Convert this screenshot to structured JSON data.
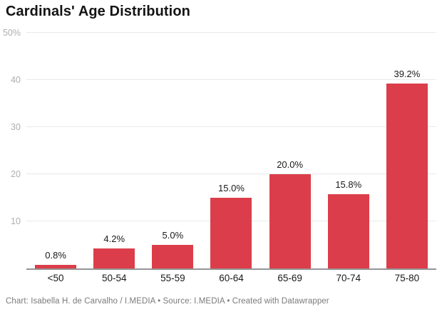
{
  "header": {
    "title": "Cardinals' Age Distribution"
  },
  "chart_data": {
    "type": "bar",
    "title": "Cardinals' Age Distribution",
    "categories": [
      "<50",
      "50-54",
      "55-59",
      "60-64",
      "65-69",
      "70-74",
      "75-80"
    ],
    "values": [
      0.8,
      4.2,
      5.0,
      15.0,
      20.0,
      15.8,
      39.2
    ],
    "value_labels": [
      "0.8%",
      "4.2%",
      "5.0%",
      "15.0%",
      "20.0%",
      "15.8%",
      "39.2%"
    ],
    "xlabel": "",
    "ylabel": "",
    "ylim": [
      0,
      50
    ],
    "yticks": [
      10,
      20,
      30,
      40,
      50
    ],
    "ytick_labels": [
      "10",
      "20",
      "30",
      "40",
      "50%"
    ],
    "grid": true,
    "legend": "none",
    "bar_color": "#db3e4a"
  },
  "colors": {
    "bar": "#db3e4a",
    "gridline": "#e9e9e9",
    "baseline": "#959595",
    "axis_text": "#aeaeae",
    "label_text": "#191919",
    "footer_text": "#7b7b7b",
    "background": "#ffffff"
  },
  "footer": {
    "credit": "Chart: Isabella H. de Carvalho / I.MEDIA • Source: I.MEDIA • Created with Datawrapper"
  }
}
